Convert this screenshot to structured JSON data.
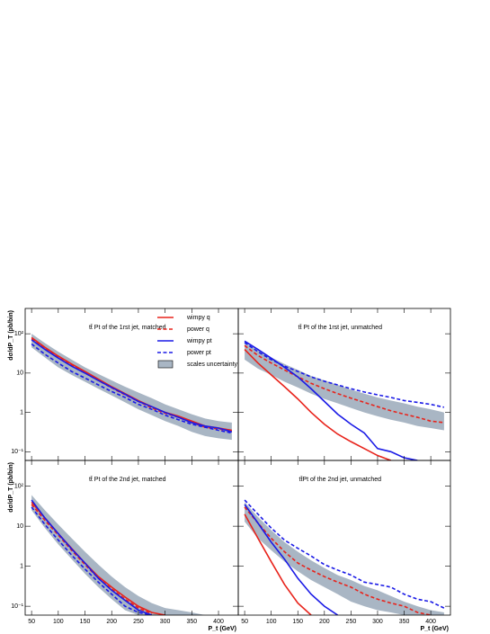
{
  "chart_data": [
    {
      "type": "line",
      "title": "tt̄ Pt of the 1rst jet, matched",
      "ylabel": "dσ/dP_T (pb/bin)",
      "log_y": true,
      "x": [
        50,
        75,
        100,
        125,
        150,
        175,
        200,
        225,
        250,
        275,
        300,
        325,
        350,
        375,
        400,
        425
      ],
      "xlim": [
        38,
        437
      ],
      "xticks": [
        50,
        100,
        150,
        200,
        250,
        300,
        350,
        400
      ],
      "ylim": [
        0.06,
        440
      ],
      "yticks": [
        {
          "value": 0.1,
          "label": "10⁻¹"
        },
        1,
        10,
        {
          "value": 100,
          "label": "10²"
        }
      ],
      "band": {
        "name": "scales uncertainty",
        "color": "#a9b6c4",
        "lower": [
          45,
          25,
          14,
          9,
          6,
          4,
          2.7,
          1.8,
          1.2,
          0.85,
          0.6,
          0.45,
          0.32,
          0.25,
          0.22,
          0.2
        ],
        "upper": [
          100,
          58,
          35,
          22,
          14,
          9.5,
          6.5,
          4.5,
          3.2,
          2.3,
          1.6,
          1.2,
          0.9,
          0.7,
          0.6,
          0.55
        ]
      },
      "series": [
        {
          "name": "wimpy q",
          "color": "#e8231b",
          "dashed": false,
          "values": [
            80,
            45,
            27,
            17,
            11,
            7,
            4.5,
            3,
            2,
            1.4,
            1.0,
            0.8,
            0.6,
            0.45,
            0.4,
            0.35
          ]
        },
        {
          "name": "power q",
          "color": "#e8231b",
          "dashed": true,
          "values": [
            75,
            42,
            25,
            16,
            10,
            6.5,
            4.2,
            2.8,
            1.9,
            1.3,
            0.95,
            0.75,
            0.55,
            0.42,
            0.38,
            0.33
          ]
        },
        {
          "name": "wimpy pt",
          "color": "#1a1ae6",
          "dashed": false,
          "values": [
            70,
            40,
            24,
            15,
            10,
            6.5,
            4.3,
            2.9,
            1.9,
            1.4,
            1.0,
            0.75,
            0.55,
            0.45,
            0.4,
            0.32
          ]
        },
        {
          "name": "power pt",
          "color": "#1a1ae6",
          "dashed": true,
          "values": [
            55,
            30,
            18,
            11,
            7.5,
            5,
            3.4,
            2.4,
            1.6,
            1.2,
            0.85,
            0.65,
            0.5,
            0.42,
            0.35,
            0.3
          ]
        }
      ]
    },
    {
      "type": "line",
      "title": "tt̄ Pt of the 1rst jet, unmatched",
      "log_y": true,
      "x": [
        50,
        75,
        100,
        125,
        150,
        175,
        200,
        225,
        250,
        275,
        300,
        325,
        350,
        375,
        400,
        425
      ],
      "xlim": [
        38,
        437
      ],
      "xticks": [
        50,
        100,
        150,
        200,
        250,
        300,
        350,
        400
      ],
      "ylim": [
        0.06,
        440
      ],
      "yticks": [
        0.1,
        1,
        10,
        100
      ],
      "band": {
        "color": "#a9b6c4",
        "lower": [
          22,
          13,
          9,
          6,
          4.3,
          3,
          2.2,
          1.7,
          1.3,
          1,
          0.8,
          0.65,
          0.55,
          0.45,
          0.4,
          0.35
        ],
        "upper": [
          60,
          38,
          25,
          17,
          12,
          8.5,
          6.5,
          5,
          3.8,
          3,
          2.4,
          2,
          1.7,
          1.4,
          1.2,
          1.0
        ]
      },
      "series": [
        {
          "color": "#e8231b",
          "dashed": false,
          "values": [
            40,
            18,
            9,
            4.5,
            2.2,
            1,
            0.5,
            0.28,
            0.18,
            0.12,
            0.08,
            0.06,
            null,
            null,
            null,
            null
          ]
        },
        {
          "color": "#e8231b",
          "dashed": true,
          "values": [
            50,
            28,
            18,
            12,
            8,
            5.5,
            4,
            3,
            2.3,
            1.8,
            1.4,
            1.1,
            0.9,
            0.75,
            0.6,
            0.55
          ]
        },
        {
          "color": "#1a1ae6",
          "dashed": false,
          "values": [
            65,
            40,
            24,
            14,
            8,
            4,
            1.9,
            0.9,
            0.5,
            0.3,
            0.12,
            0.1,
            0.07,
            0.06,
            null,
            null
          ]
        },
        {
          "color": "#1a1ae6",
          "dashed": true,
          "values": [
            60,
            35,
            22,
            15,
            11,
            8,
            6.2,
            5,
            4,
            3.3,
            2.8,
            2.4,
            2,
            1.8,
            1.6,
            1.35
          ]
        }
      ]
    },
    {
      "type": "line",
      "title": "tt̄ Pt of the 2nd jet, matched",
      "ylabel": "dσ/dP_T (pb/bin)",
      "xlabel": "P_t (GeV)",
      "log_y": true,
      "x": [
        50,
        75,
        100,
        125,
        150,
        175,
        200,
        225,
        250,
        275,
        300,
        325,
        350,
        375,
        400,
        425
      ],
      "xlim": [
        38,
        437
      ],
      "xticks": [
        50,
        100,
        150,
        200,
        250,
        300,
        350,
        400
      ],
      "ylim": [
        0.06,
        440
      ],
      "yticks": [
        {
          "value": 0.1,
          "label": "10⁻¹"
        },
        1,
        10,
        {
          "value": 100,
          "label": "10²"
        }
      ],
      "band": {
        "color": "#a9b6c4",
        "lower": [
          25,
          9,
          3.5,
          1.5,
          0.65,
          0.3,
          0.15,
          0.08,
          0.06,
          0.06,
          0.06,
          0.06,
          0.06,
          0.06,
          0.06,
          0.06
        ],
        "upper": [
          60,
          25,
          11,
          5,
          2.3,
          1.1,
          0.55,
          0.3,
          0.18,
          0.12,
          0.09,
          0.08,
          0.07,
          0.06,
          0.06,
          0.06
        ]
      },
      "series": [
        {
          "color": "#e8231b",
          "dashed": false,
          "values": [
            40,
            16,
            6.5,
            2.8,
            1.2,
            0.55,
            0.3,
            0.17,
            0.1,
            0.07,
            0.06,
            null,
            null,
            null,
            null,
            null
          ]
        },
        {
          "color": "#e8231b",
          "dashed": true,
          "values": [
            35,
            14,
            6,
            2.5,
            1.1,
            0.5,
            0.27,
            0.15,
            0.09,
            0.065,
            null,
            null,
            null,
            null,
            null,
            null
          ]
        },
        {
          "color": "#1a1ae6",
          "dashed": false,
          "values": [
            45,
            16,
            6.5,
            2.7,
            1.2,
            0.5,
            0.25,
            0.14,
            0.08,
            0.06,
            null,
            null,
            null,
            null,
            null,
            null
          ]
        },
        {
          "color": "#1a1ae6",
          "dashed": true,
          "values": [
            30,
            11,
            4.5,
            1.9,
            0.85,
            0.4,
            0.2,
            0.1,
            0.07,
            0.06,
            null,
            null,
            null,
            null,
            null,
            null
          ]
        }
      ]
    },
    {
      "type": "line",
      "title": "tt̄Pt of the 2nd jet, unmatched",
      "xlabel": "P_t (GeV)",
      "log_y": true,
      "x": [
        50,
        75,
        100,
        125,
        150,
        175,
        200,
        225,
        250,
        275,
        300,
        325,
        350,
        375,
        400,
        425
      ],
      "xlim": [
        38,
        437
      ],
      "xticks": [
        50,
        100,
        150,
        200,
        250,
        300,
        350,
        400
      ],
      "ylim": [
        0.06,
        440
      ],
      "yticks": [
        0.1,
        1,
        10,
        100
      ],
      "band": {
        "color": "#a9b6c4",
        "lower": [
          13,
          5,
          2.5,
          1.3,
          0.75,
          0.45,
          0.3,
          0.2,
          0.13,
          0.1,
          0.08,
          0.07,
          0.06,
          0.06,
          0.06,
          0.06
        ],
        "upper": [
          40,
          17,
          8,
          4,
          2.3,
          1.4,
          0.9,
          0.6,
          0.45,
          0.32,
          0.25,
          0.18,
          0.13,
          0.1,
          0.08,
          0.07
        ]
      },
      "series": [
        {
          "color": "#e8231b",
          "dashed": false,
          "values": [
            20,
            5,
            1.3,
            0.35,
            0.12,
            0.06,
            null,
            null,
            null,
            null,
            null,
            null,
            null,
            null,
            null,
            null
          ]
        },
        {
          "color": "#e8231b",
          "dashed": true,
          "values": [
            30,
            12,
            5,
            2.3,
            1.2,
            0.8,
            0.55,
            0.4,
            0.3,
            0.2,
            0.15,
            0.12,
            0.1,
            0.07,
            0.06,
            null
          ]
        },
        {
          "color": "#1a1ae6",
          "dashed": false,
          "values": [
            35,
            12,
            4,
            1.5,
            0.5,
            0.2,
            0.1,
            0.06,
            null,
            null,
            null,
            null,
            null,
            null,
            null,
            null
          ]
        },
        {
          "color": "#1a1ae6",
          "dashed": true,
          "values": [
            45,
            20,
            9,
            4.5,
            2.8,
            1.8,
            1.1,
            0.8,
            0.6,
            0.4,
            0.35,
            0.3,
            0.2,
            0.15,
            0.13,
            0.09
          ]
        }
      ]
    }
  ]
}
